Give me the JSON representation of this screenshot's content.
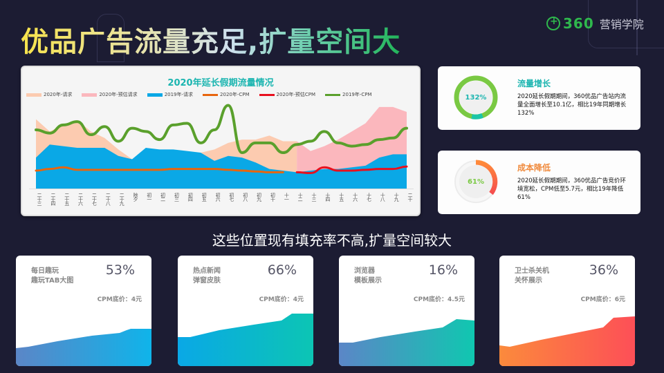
{
  "header": {
    "title": "优品广告流量充足,扩量空间大",
    "logo_number": "360",
    "logo_text": "营销学院"
  },
  "main_chart": {
    "title": "2020年延长假期流量情况",
    "legend": [
      {
        "label": "2020年-请求",
        "color": "#fccbb0",
        "kind": "area"
      },
      {
        "label": "2020年-预估请求",
        "color": "#fbb7bd",
        "kind": "area"
      },
      {
        "label": "2019年-请求",
        "color": "#0aa8e6",
        "kind": "area"
      },
      {
        "label": "2020年-CPM",
        "color": "#e8650e",
        "kind": "line"
      },
      {
        "label": "2020年-预估CPM",
        "color": "#e8101e",
        "kind": "line"
      },
      {
        "label": "2019年-CPM",
        "color": "#5aa02c",
        "kind": "line"
      }
    ]
  },
  "chart_data": {
    "type": "area",
    "title": "2020年延长假期流量情况",
    "xlabel": "",
    "ylabel": "",
    "grid": false,
    "legend_position": "top",
    "categories": [
      "二十三",
      "二十四",
      "二十五",
      "二十六",
      "二十七",
      "二十八",
      "二十九",
      "除夕",
      "初一",
      "初二",
      "初三",
      "初四",
      "初五",
      "初六",
      "初七",
      "初八",
      "初九",
      "初十",
      "十一",
      "十二",
      "十三",
      "十四",
      "十五",
      "十六",
      "十七",
      "十八",
      "十九",
      "二十"
    ],
    "series": [
      {
        "name": "2020年-请求",
        "type": "area",
        "values": [
          85,
          70,
          78,
          84,
          70,
          62,
          48,
          36,
          42,
          44,
          46,
          44,
          44,
          48,
          56,
          60,
          60,
          65,
          58,
          58,
          null,
          null,
          null,
          null,
          null,
          null,
          null,
          null
        ]
      },
      {
        "name": "2020年-预估请求",
        "type": "area",
        "values": [
          null,
          null,
          null,
          null,
          null,
          null,
          null,
          null,
          null,
          null,
          null,
          null,
          null,
          null,
          null,
          null,
          null,
          null,
          null,
          58,
          46,
          52,
          60,
          70,
          80,
          100,
          100,
          94
        ]
      },
      {
        "name": "2019年-请求",
        "type": "area",
        "values": [
          38,
          54,
          52,
          50,
          50,
          50,
          40,
          36,
          50,
          48,
          48,
          46,
          44,
          34,
          40,
          38,
          32,
          24,
          22,
          20,
          22,
          24,
          24,
          26,
          28,
          38,
          42,
          42
        ]
      },
      {
        "name": "2020年-CPM",
        "type": "line",
        "values": [
          22,
          24,
          26,
          23,
          23,
          23,
          23,
          23,
          23,
          23,
          24,
          24,
          24,
          24,
          23,
          22,
          21,
          20,
          20,
          null,
          null,
          null,
          null,
          null,
          null,
          null,
          null,
          null
        ]
      },
      {
        "name": "2020年-预估CPM",
        "type": "line",
        "values": [
          null,
          null,
          null,
          null,
          null,
          null,
          null,
          null,
          null,
          null,
          null,
          null,
          null,
          null,
          null,
          null,
          null,
          null,
          null,
          20,
          19,
          26,
          22,
          22,
          23,
          24,
          24,
          27
        ]
      },
      {
        "name": "2019年-CPM",
        "type": "line",
        "values": [
          72,
          68,
          78,
          82,
          66,
          76,
          58,
          74,
          70,
          60,
          78,
          80,
          56,
          72,
          102,
          44,
          56,
          56,
          44,
          54,
          58,
          70,
          56,
          52,
          54,
          60,
          62,
          74
        ]
      }
    ]
  },
  "stats": [
    {
      "title": "流量增长",
      "value": "132%",
      "percent": 100,
      "title_color": "#1bb5b0",
      "ring_color": "#7ac943",
      "ring_accent": "#1bc5a8",
      "value_color": "#1bb5b0",
      "desc": "2020延长假期期间，360优品广告站内流量全面增长至10.1亿，相比19年同期增长132%"
    },
    {
      "title": "成本降低",
      "value": "61%",
      "percent": 39,
      "title_color": "#f08a3c",
      "ring_color": "#f56a4a",
      "ring_accent": "#ff8a3a",
      "value_color": "#7ac943",
      "desc": "2020延长假期期间，360优品广告竞价环境宽松，CPM低至5.7元，相比19年降低61%"
    }
  ],
  "subtitle": "这些位置现有填充率不高,扩量空间较大",
  "positions": [
    {
      "name_line1": "每日趣玩",
      "name_line2": "趣玩TAB大图",
      "fill_rate": "53%",
      "cpm": "CPM底价：4元",
      "grad_start": "#5b86c7",
      "grad_end": "#0fb4ea"
    },
    {
      "name_line1": "热点新闻",
      "name_line2": "弹窗皮肤",
      "fill_rate": "66%",
      "cpm": "CPM底价：4元",
      "grad_start": "#0aa8e6",
      "grad_end": "#0cc5b4"
    },
    {
      "name_line1": "浏览器",
      "name_line2": "模板展示",
      "fill_rate": "16%",
      "cpm": "CPM底价：4.5元",
      "grad_start": "#5b86c7",
      "grad_end": "#10c7b0"
    },
    {
      "name_line1": "卫士杀关机",
      "name_line2": "关怀展示",
      "fill_rate": "36%",
      "cpm": "CPM底价：6元",
      "grad_start": "#fb8a3c",
      "grad_end": "#fd4f57"
    }
  ]
}
